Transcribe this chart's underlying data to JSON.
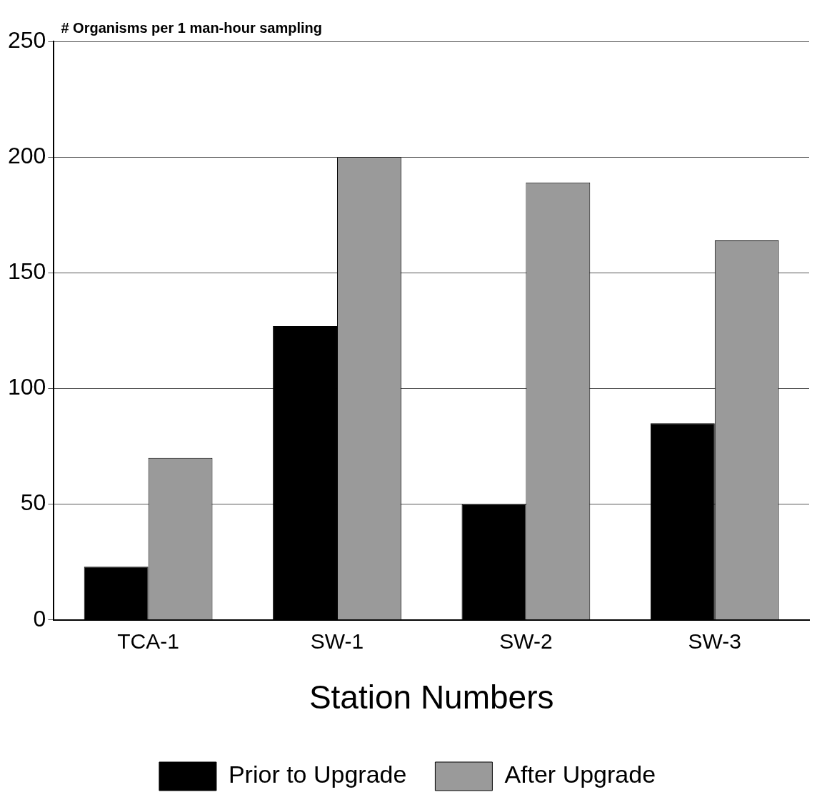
{
  "chart_data": {
    "type": "bar",
    "ylabel": "# Organisms per 1 man-hour sampling",
    "xlabel": "Station Numbers",
    "categories": [
      "TCA-1",
      "SW-1",
      "SW-2",
      "SW-3"
    ],
    "series": [
      {
        "name": "Prior to Upgrade",
        "color": "#000000",
        "values": [
          23,
          127,
          50,
          85
        ]
      },
      {
        "name": "After Upgrade",
        "color": "#9a9a9a",
        "values": [
          70,
          200,
          189,
          164
        ]
      }
    ],
    "ylim": [
      0,
      250
    ],
    "yticks": [
      0,
      50,
      100,
      150,
      200,
      250
    ],
    "grid": "y",
    "legend": "bottom"
  }
}
